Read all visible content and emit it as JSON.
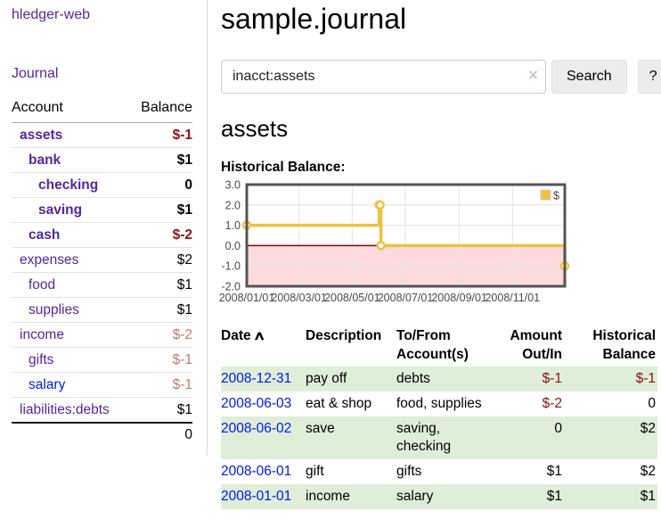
{
  "app": {
    "title": "hledger-web"
  },
  "sidebar": {
    "journal_label": "Journal",
    "headers": {
      "account": "Account",
      "balance": "Balance"
    },
    "accounts": [
      {
        "name": "assets",
        "balance": "$-1"
      },
      {
        "name": "bank",
        "balance": "$1"
      },
      {
        "name": "checking",
        "balance": "0"
      },
      {
        "name": "saving",
        "balance": "$1"
      },
      {
        "name": "cash",
        "balance": "$-2"
      },
      {
        "name": "expenses",
        "balance": "$2"
      },
      {
        "name": "food",
        "balance": "$1"
      },
      {
        "name": "supplies",
        "balance": "$1"
      },
      {
        "name": "income",
        "balance": "$-2"
      },
      {
        "name": "gifts",
        "balance": "$-1"
      },
      {
        "name": "salary",
        "balance": "$-1"
      },
      {
        "name": "liabilities:debts",
        "balance": "$1"
      }
    ],
    "total": "0"
  },
  "main": {
    "title": "sample.journal",
    "search": {
      "value": "inacct:assets",
      "clear_icon": "×",
      "button_label": "Search",
      "help_label": "?"
    },
    "account_heading": "assets",
    "chart_label": "Historical Balance:",
    "register": {
      "headers": {
        "date": "Date",
        "sort_icon": "∧",
        "description": "Description",
        "accounts": "To/From Account(s)",
        "amount": "Amount Out/In",
        "balance": "Historical Balance"
      },
      "rows": [
        {
          "date": "2008-12-31",
          "description": "pay off",
          "accounts": "debts",
          "amount": "$-1",
          "balance": "$-1",
          "amount_negative": true,
          "balance_negative": true
        },
        {
          "date": "2008-06-03",
          "description": "eat & shop",
          "accounts": "food, supplies",
          "amount": "$-2",
          "balance": "0",
          "amount_negative": true,
          "balance_negative": false
        },
        {
          "date": "2008-06-02",
          "description": "save",
          "accounts": "saving, checking",
          "amount": "0",
          "balance": "$2",
          "amount_negative": false,
          "balance_negative": false
        },
        {
          "date": "2008-06-01",
          "description": "gift",
          "accounts": "gifts",
          "amount": "$1",
          "balance": "$2",
          "amount_negative": false,
          "balance_negative": false
        },
        {
          "date": "2008-01-01",
          "description": "income",
          "accounts": "salary",
          "amount": "$1",
          "balance": "$1",
          "amount_negative": false,
          "balance_negative": false
        }
      ]
    }
  },
  "chart_data": {
    "type": "line",
    "step": true,
    "title": "Historical Balance:",
    "legend": {
      "position": "top-right",
      "label": "$"
    },
    "xaxis": {
      "min": "2008-01-01",
      "max": "2008-12-31",
      "ticks": [
        "2008/01/01",
        "2008/03/01",
        "2008/05/01",
        "2008/07/01",
        "2008/09/01",
        "2008/11/01"
      ]
    },
    "yaxis": {
      "min": -2,
      "max": 3,
      "ticks": [
        "3.0",
        "2.0",
        "1.0",
        "0.0",
        "-1.0",
        "-2.0"
      ]
    },
    "series": [
      {
        "name": "$",
        "color": "#edc240",
        "points": [
          {
            "date": "2008-01-01",
            "value": 1
          },
          {
            "date": "2008-06-01",
            "value": 2
          },
          {
            "date": "2008-06-02",
            "value": 2
          },
          {
            "date": "2008-06-03",
            "value": 0
          },
          {
            "date": "2008-12-31",
            "value": -1
          }
        ]
      }
    ],
    "style": {
      "negative_fill": "#fbdbdb",
      "zero_line": "#8b0000",
      "grid": "#e3e3e3",
      "border": "#545454"
    }
  },
  "colors": {
    "link_purple": "#53279d",
    "link_blue": "#0018ee",
    "negative_strong": "#8b1113",
    "negative_soft": "#ba7a7a",
    "row_green": "#dfeed8",
    "chart_gold": "#edc240"
  }
}
